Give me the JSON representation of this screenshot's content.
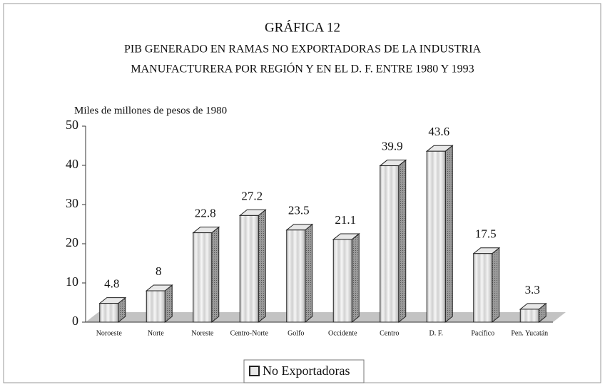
{
  "chart_data": {
    "type": "bar",
    "title": "GRÁFICA 12",
    "subtitle": [
      "PIB GENERADO EN RAMAS NO EXPORTADORAS DE LA INDUSTRIA",
      "MANUFACTURERA POR REGIÓN Y EN EL D. F. ENTRE 1980 Y 1993"
    ],
    "y_label": "Miles de millones de pesos de 1980",
    "categories": [
      "Noroeste",
      "Norte",
      "Noreste",
      "Centro-Norte",
      "Golfo",
      "Occidente",
      "Centro",
      "D. F.",
      "Pacífico",
      "Pen. Yucatán"
    ],
    "series": [
      {
        "name": "No Exportadoras",
        "color": "#e8e8e8",
        "values": [
          4.8,
          8,
          22.8,
          27.2,
          23.5,
          21.1,
          39.9,
          43.6,
          17.5,
          3.3
        ]
      }
    ],
    "ylim": [
      0,
      50
    ],
    "yticks": [
      0,
      10,
      20,
      30,
      40,
      50
    ]
  }
}
